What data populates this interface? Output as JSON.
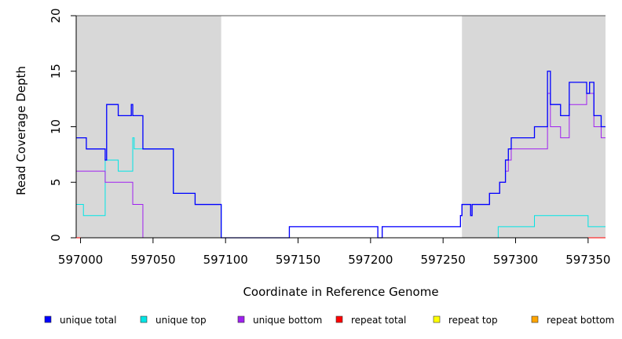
{
  "chart_data": {
    "type": "line",
    "title": "",
    "xlabel": "Coordinate in Reference Genome",
    "ylabel": "Read Coverage Depth",
    "xlim": [
      596997,
      597362
    ],
    "ylim": [
      0,
      20
    ],
    "x_ticks": [
      597000,
      597050,
      597100,
      597150,
      597200,
      597250,
      597300,
      597350
    ],
    "y_ticks": [
      0,
      5,
      10,
      15,
      20
    ],
    "shaded_regions": [
      [
        596997,
        597097
      ],
      [
        597263,
        597362
      ]
    ],
    "grid": false,
    "legend_position": "bottom",
    "series": [
      {
        "name": "unique total",
        "color": "#0000ff",
        "points": [
          [
            596997,
            9
          ],
          [
            597004,
            9
          ],
          [
            597004,
            8
          ],
          [
            597017,
            8
          ],
          [
            597017,
            7
          ],
          [
            597018,
            7
          ],
          [
            597018,
            12
          ],
          [
            597026,
            12
          ],
          [
            597026,
            11
          ],
          [
            597035,
            11
          ],
          [
            597035,
            12
          ],
          [
            597036,
            12
          ],
          [
            597036,
            11
          ],
          [
            597043,
            11
          ],
          [
            597043,
            8
          ],
          [
            597064,
            8
          ],
          [
            597064,
            4
          ],
          [
            597079,
            4
          ],
          [
            597079,
            3
          ],
          [
            597097,
            3
          ],
          [
            597097,
            0
          ],
          [
            597144,
            0
          ],
          [
            597144,
            1
          ],
          [
            597205,
            1
          ],
          [
            597205,
            0
          ],
          [
            597208,
            0
          ],
          [
            597208,
            1
          ],
          [
            597262,
            1
          ],
          [
            597262,
            2
          ],
          [
            597263,
            2
          ],
          [
            597263,
            3
          ],
          [
            597269,
            3
          ],
          [
            597269,
            2
          ],
          [
            597270,
            2
          ],
          [
            597270,
            3
          ],
          [
            597282,
            3
          ],
          [
            597282,
            4
          ],
          [
            597289,
            4
          ],
          [
            597289,
            5
          ],
          [
            597293,
            5
          ],
          [
            597293,
            7
          ],
          [
            597295,
            7
          ],
          [
            597295,
            8
          ],
          [
            597297,
            8
          ],
          [
            597297,
            9
          ],
          [
            597313,
            9
          ],
          [
            597313,
            10
          ],
          [
            597322,
            10
          ],
          [
            597322,
            15
          ],
          [
            597324,
            15
          ],
          [
            597324,
            12
          ],
          [
            597331,
            12
          ],
          [
            597331,
            11
          ],
          [
            597337,
            11
          ],
          [
            597337,
            14
          ],
          [
            597349,
            14
          ],
          [
            597349,
            13
          ],
          [
            597351,
            13
          ],
          [
            597351,
            14
          ],
          [
            597354,
            14
          ],
          [
            597354,
            11
          ],
          [
            597359,
            11
          ],
          [
            597359,
            10
          ],
          [
            597362,
            10
          ]
        ]
      },
      {
        "name": "unique top",
        "color": "#00e5e5",
        "points": [
          [
            596997,
            3
          ],
          [
            597002,
            3
          ],
          [
            597002,
            2
          ],
          [
            597017,
            2
          ],
          [
            597017,
            7
          ],
          [
            597026,
            7
          ],
          [
            597026,
            6
          ],
          [
            597036,
            6
          ],
          [
            597036,
            9
          ],
          [
            597037,
            9
          ],
          [
            597037,
            8
          ],
          [
            597043,
            8
          ],
          [
            597043,
            8
          ],
          [
            597064,
            8
          ],
          [
            597064,
            4
          ],
          [
            597079,
            4
          ],
          [
            597079,
            3
          ],
          [
            597097,
            3
          ],
          [
            597097,
            0
          ],
          [
            597288,
            0
          ],
          [
            597288,
            1
          ],
          [
            597313,
            1
          ],
          [
            597313,
            2
          ],
          [
            597350,
            2
          ],
          [
            597350,
            1
          ],
          [
            597362,
            1
          ]
        ]
      },
      {
        "name": "unique bottom",
        "color": "#a020f0",
        "points": [
          [
            596997,
            6
          ],
          [
            597017,
            6
          ],
          [
            597017,
            5
          ],
          [
            597036,
            5
          ],
          [
            597036,
            3
          ],
          [
            597043,
            3
          ],
          [
            597043,
            0
          ],
          [
            597144,
            0
          ],
          [
            597144,
            1
          ],
          [
            597205,
            1
          ],
          [
            597205,
            0
          ],
          [
            597208,
            0
          ],
          [
            597208,
            1
          ],
          [
            597262,
            1
          ],
          [
            597262,
            2
          ],
          [
            597263,
            2
          ],
          [
            597263,
            3
          ],
          [
            597269,
            3
          ],
          [
            597269,
            2
          ],
          [
            597270,
            2
          ],
          [
            597270,
            3
          ],
          [
            597282,
            3
          ],
          [
            597282,
            4
          ],
          [
            597289,
            4
          ],
          [
            597289,
            5
          ],
          [
            597293,
            5
          ],
          [
            597293,
            6
          ],
          [
            597295,
            6
          ],
          [
            597295,
            7
          ],
          [
            597297,
            7
          ],
          [
            597297,
            8
          ],
          [
            597322,
            8
          ],
          [
            597322,
            13
          ],
          [
            597324,
            13
          ],
          [
            597324,
            10
          ],
          [
            597331,
            10
          ],
          [
            597331,
            9
          ],
          [
            597337,
            9
          ],
          [
            597337,
            12
          ],
          [
            597349,
            12
          ],
          [
            597349,
            13
          ],
          [
            597354,
            13
          ],
          [
            597354,
            10
          ],
          [
            597359,
            10
          ],
          [
            597359,
            9
          ],
          [
            597362,
            9
          ]
        ]
      },
      {
        "name": "repeat total",
        "color": "#ff0000",
        "points": [
          [
            596997,
            0
          ],
          [
            597362,
            0
          ]
        ]
      },
      {
        "name": "repeat top",
        "color": "#ffff00",
        "points": [
          [
            596997,
            0
          ],
          [
            597362,
            0
          ]
        ]
      },
      {
        "name": "repeat bottom",
        "color": "#ffa500",
        "points": [
          [
            596997,
            0
          ],
          [
            597362,
            0
          ]
        ]
      }
    ]
  }
}
